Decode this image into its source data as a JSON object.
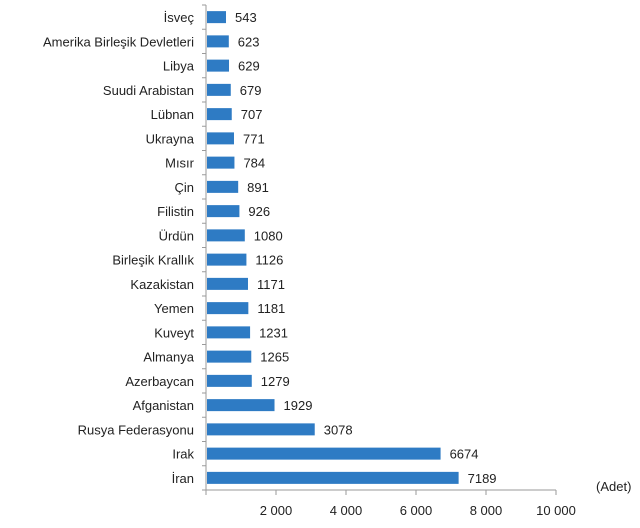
{
  "chart_data": {
    "type": "bar",
    "orientation": "horizontal",
    "categories": [
      "İsveç",
      "Amerika Birleşik Devletleri",
      "Libya",
      "Suudi Arabistan",
      "Lübnan",
      "Ukrayna",
      "Mısır",
      "Çin",
      "Filistin",
      "Ürdün",
      "Birleşik Krallık",
      "Kazakistan",
      "Yemen",
      "Kuveyt",
      "Almanya",
      "Azerbaycan",
      "Afganistan",
      "Rusya Federasyonu",
      "Irak",
      "İran"
    ],
    "values": [
      543,
      623,
      629,
      679,
      707,
      771,
      784,
      891,
      926,
      1080,
      1126,
      1171,
      1181,
      1231,
      1265,
      1279,
      1929,
      3078,
      6674,
      7189
    ],
    "data_labels": [
      "543",
      "623",
      "629",
      "679",
      "707",
      "771",
      "784",
      "891",
      "926",
      "1080",
      "1126",
      "1171",
      "1181",
      "1231",
      "1265",
      "1279",
      "1929",
      "3078",
      "6674",
      "7189"
    ],
    "xlim": [
      0,
      10000
    ],
    "x_ticks": [
      2000,
      4000,
      6000,
      8000,
      10000
    ],
    "x_tick_labels": [
      "2 000",
      "4 000",
      "6 000",
      "8 000",
      "10 000"
    ],
    "unit_label": "(Adet)",
    "grid": false,
    "legend": "none",
    "bar_color": "#2e7bc4"
  }
}
